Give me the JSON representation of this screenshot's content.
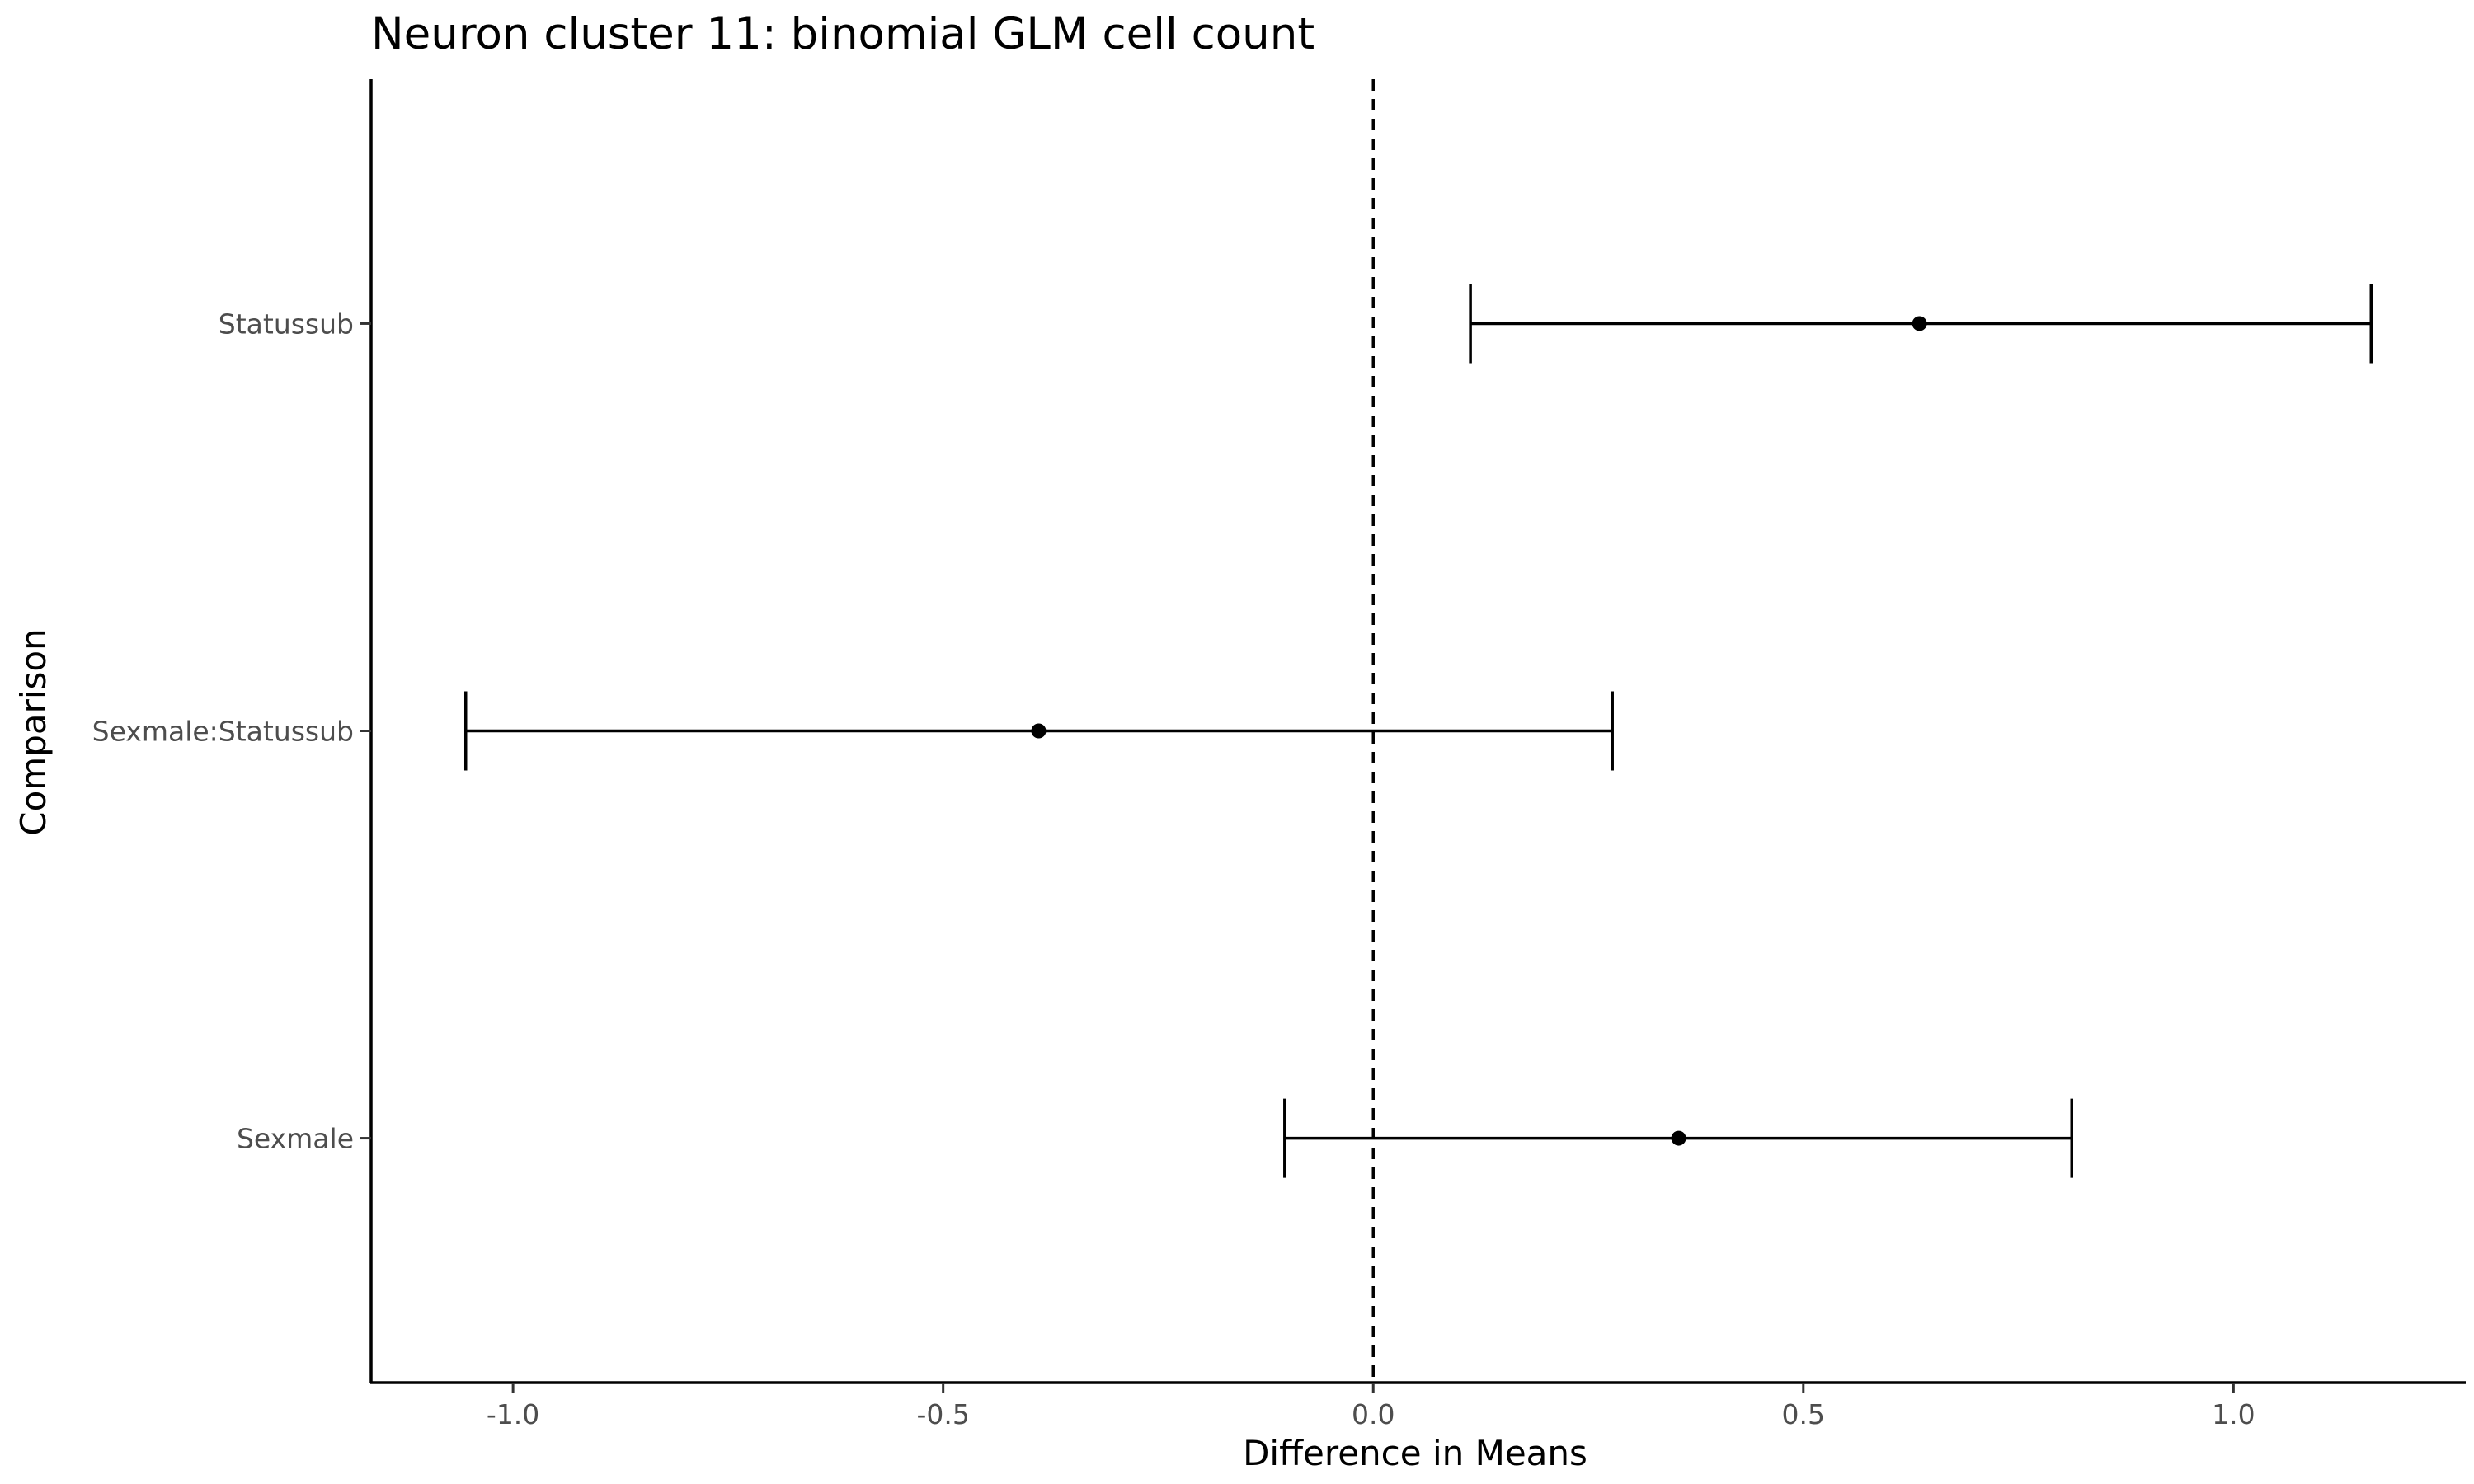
{
  "chart_data": {
    "type": "scatter",
    "title": "Neuron cluster 11: binomial GLM cell count",
    "xlabel": "Difference in Means",
    "ylabel": "Comparison",
    "categories": [
      "Sexmale",
      "Sexmale:Statussub",
      "Statussub"
    ],
    "points": [
      {
        "label": "Sexmale",
        "estimate": 0.355,
        "lower": -0.103,
        "upper": 0.812
      },
      {
        "label": "Sexmale:Statussub",
        "estimate": -0.389,
        "lower": -1.055,
        "upper": 0.278
      },
      {
        "label": "Statussub",
        "estimate": 0.635,
        "lower": 0.113,
        "upper": 1.16
      }
    ],
    "xlim": [
      -1.165,
      1.27
    ],
    "xticks": [
      {
        "value": -1.0,
        "label": "-1.0"
      },
      {
        "value": -0.5,
        "label": "-0.5"
      },
      {
        "value": 0.0,
        "label": "0.0"
      },
      {
        "value": 0.5,
        "label": "0.5"
      },
      {
        "value": 1.0,
        "label": "1.0"
      }
    ],
    "reference_line": {
      "value": 0,
      "style": "dashed"
    },
    "grid": false,
    "legend": "none"
  }
}
